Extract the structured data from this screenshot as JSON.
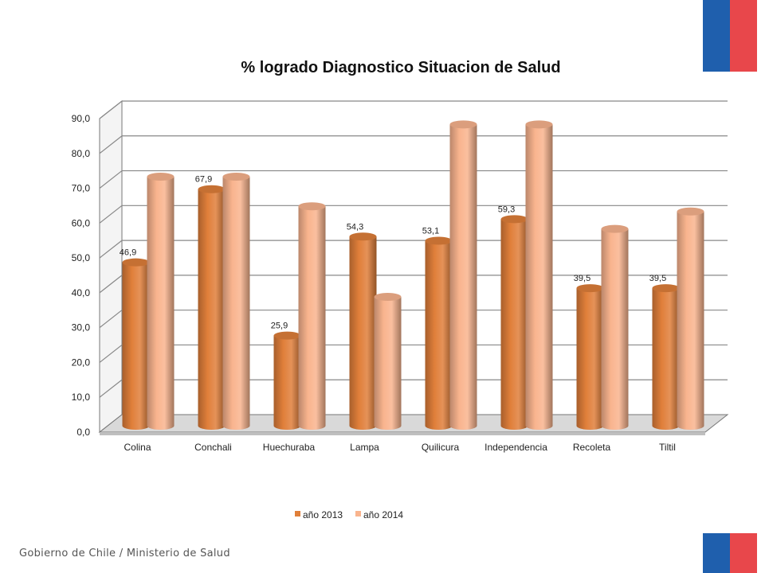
{
  "colors": {
    "flag_blue": "#1f5fad",
    "flag_red": "#e8474b",
    "series_2013": "#e07f3a",
    "series_2014": "#f9b48e"
  },
  "footer": {
    "text": "Gobierno de Chile / Ministerio de Salud"
  },
  "chart_data": {
    "type": "bar",
    "style": "3d-cylinder",
    "title": "% logrado Diagnostico Situacion de Salud",
    "xlabel": "",
    "ylabel": "",
    "ylim": [
      0,
      90
    ],
    "yticks": [
      "0,0",
      "10,0",
      "20,0",
      "30,0",
      "40,0",
      "50,0",
      "60,0",
      "70,0",
      "80,0",
      "90,0"
    ],
    "grid": true,
    "legend_position": "bottom",
    "categories": [
      "Colina",
      "Conchali",
      "Huechuraba",
      "Lampa",
      "Quilicura",
      "Independencia",
      "Recoleta",
      "Tiltil"
    ],
    "series": [
      {
        "name": "año 2013",
        "values": [
          46.9,
          67.9,
          25.9,
          54.3,
          53.1,
          59.3,
          39.5,
          39.5
        ],
        "labels": [
          "46,9",
          "67,9",
          "25,9",
          "54,3",
          "53,1",
          "59,3",
          "39,5",
          "39,5"
        ]
      },
      {
        "name": "año 2014",
        "values": [
          71.5,
          71.5,
          63,
          37,
          86.5,
          86.5,
          56.5,
          61.5
        ],
        "labels": []
      }
    ]
  }
}
